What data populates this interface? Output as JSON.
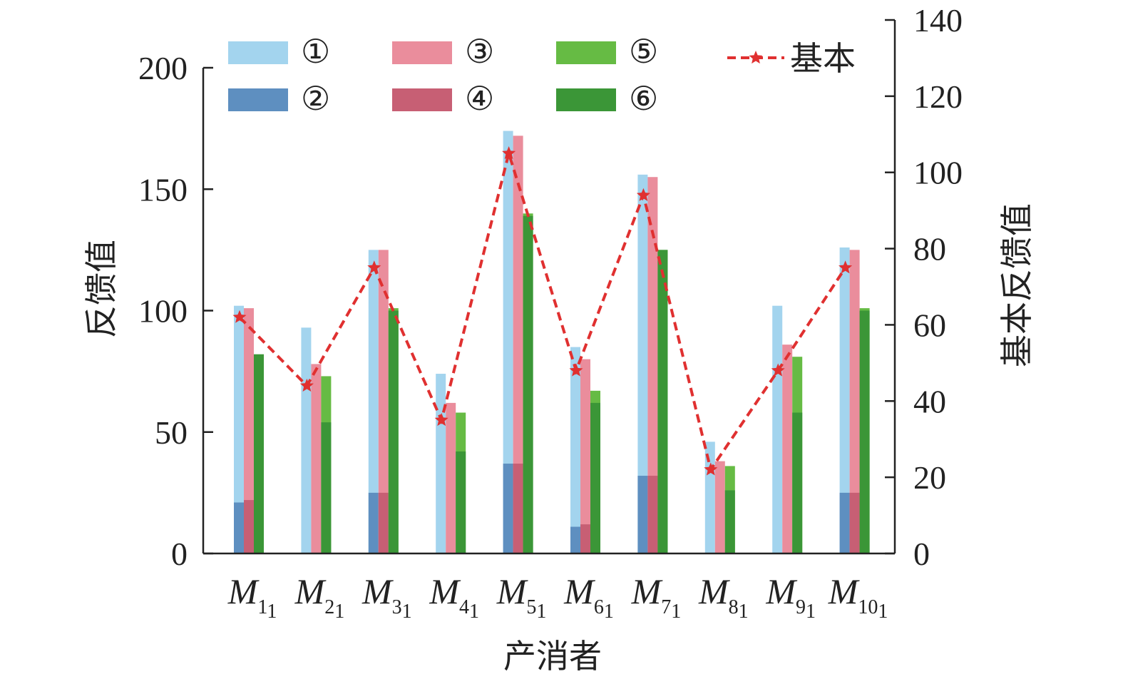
{
  "chart_data": {
    "type": "bar",
    "xlabel": "产消者",
    "ylabel": "反馈值",
    "y2label": "基本反馈值",
    "ylim": [
      0,
      200
    ],
    "y2lim": [
      0,
      140
    ],
    "yticks": [
      "0",
      "50",
      "100",
      "150",
      "200"
    ],
    "y2ticks": [
      "0",
      "20",
      "40",
      "60",
      "80",
      "100",
      "120",
      "140"
    ],
    "categories": [
      {
        "main": "M",
        "sub": "1",
        "sub2": "1"
      },
      {
        "main": "M",
        "sub": "2",
        "sub2": "1"
      },
      {
        "main": "M",
        "sub": "3",
        "sub2": "1"
      },
      {
        "main": "M",
        "sub": "4",
        "sub2": "1"
      },
      {
        "main": "M",
        "sub": "5",
        "sub2": "1"
      },
      {
        "main": "M",
        "sub": "6",
        "sub2": "1"
      },
      {
        "main": "M",
        "sub": "7",
        "sub2": "1"
      },
      {
        "main": "M",
        "sub": "8",
        "sub2": "1"
      },
      {
        "main": "M",
        "sub": "9",
        "sub2": "1"
      },
      {
        "main": "M",
        "sub": "10",
        "sub2": "1"
      }
    ],
    "bar_groups": [
      {
        "name": "①",
        "color": "#a3d4ee",
        "values": [
          102,
          93,
          125,
          74,
          174,
          85,
          156,
          46,
          102,
          126
        ],
        "inner": {
          "name": "②",
          "color": "#5e8fc0",
          "values": [
            21,
            0,
            25,
            0,
            37,
            11,
            32,
            0,
            0,
            25
          ]
        }
      },
      {
        "name": "③",
        "color": "#ea8d9c",
        "values": [
          101,
          78,
          125,
          62,
          172,
          80,
          155,
          38,
          86,
          125
        ],
        "inner": {
          "name": "④",
          "color": "#c75f74",
          "values": [
            22,
            0,
            25,
            0,
            37,
            12,
            32,
            0,
            0,
            25
          ]
        }
      },
      {
        "name": "⑤",
        "color": "#66bb44",
        "values": [
          82,
          73,
          101,
          58,
          140,
          67,
          125,
          36,
          81,
          101
        ],
        "inner": {
          "name": "⑥",
          "color": "#3b9637",
          "values": [
            82,
            54,
            100,
            42,
            139,
            62,
            125,
            26,
            58,
            100
          ]
        }
      }
    ],
    "line_series": {
      "name": "基本",
      "color": "#e03030",
      "axis": "right",
      "values": [
        62,
        44,
        75,
        35,
        105,
        48,
        94,
        22,
        48,
        75
      ]
    },
    "legend": [
      "①",
      "③",
      "⑤",
      "②",
      "④",
      "⑥",
      "基本"
    ],
    "legend_position": "top",
    "grid": false
  }
}
